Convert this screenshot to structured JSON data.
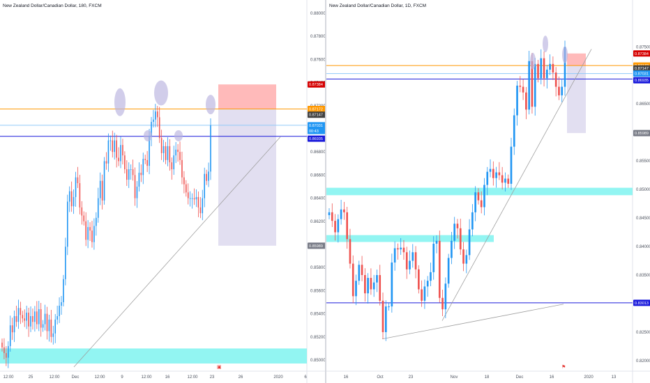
{
  "colors": {
    "up": "#2196f3",
    "down": "#ef5350",
    "zone": "#7ff3f0",
    "entry": "#ff9800",
    "tp_box": "#d8d4ec",
    "sl_box": "#ffb3b3",
    "line_dark": "#1a1adb",
    "line_light": "#90caf9",
    "trend": "#9e9e9e",
    "circle": "#b8b2de"
  },
  "icons": [
    "calendar-event-icon",
    "flag-icon"
  ],
  "left": {
    "title": "New Zealand Dollar/Canadian Dollar, 180, FXCM",
    "y_ticks": [
      "0.88000",
      "0.87800",
      "0.87600",
      "0.87400",
      "0.87200",
      "0.87000",
      "0.86800",
      "0.86600",
      "0.86400",
      "0.86200",
      "0.86000",
      "0.85800",
      "0.85600",
      "0.85400",
      "0.85200",
      "0.85000"
    ],
    "x_ticks": [
      "12:00",
      "25",
      "12:00",
      "Dec",
      "12:00",
      "9",
      "12:00",
      "16",
      "12:00",
      "23",
      "26",
      "2020",
      "6"
    ],
    "price_tags": [
      {
        "label": "0.87384",
        "color": "#d50000"
      },
      {
        "label": "0.87172",
        "color": "#ff9800"
      },
      {
        "label": "0.87147",
        "color": "#424242"
      },
      {
        "label": "0.87031",
        "color": "#2196f3"
      },
      {
        "label": "00:43",
        "color": "#2196f3"
      },
      {
        "label": "0.86935",
        "color": "#1a1adb"
      },
      {
        "label": "0.85989",
        "color": "#787b86"
      }
    ]
  },
  "right": {
    "title": "New Zealand Dollar/Canadian Dollar, 1D, FXCM",
    "y_ticks": [
      "0.87500",
      "0.87000",
      "0.86500",
      "0.86000",
      "0.85500",
      "0.85000",
      "0.84500",
      "0.84000",
      "0.83500",
      "0.83000",
      "0.82500",
      "0.82000"
    ],
    "x_ticks": [
      "16",
      "Oct",
      "23",
      "Nov",
      "18",
      "Dec",
      "16",
      "2020",
      "13"
    ],
    "price_tags": [
      {
        "label": "0.87384",
        "color": "#d50000"
      },
      {
        "label": "0.87172",
        "color": "#ff9800"
      },
      {
        "label": "0.87147",
        "color": "#424242"
      },
      {
        "label": "0.87031",
        "color": "#2196f3"
      },
      {
        "label": "0.86935",
        "color": "#1a1adb"
      },
      {
        "label": "0.85989",
        "color": "#787b86"
      },
      {
        "label": "0.83013",
        "color": "#1a1adb"
      }
    ]
  },
  "chart_data": [
    {
      "type": "candlestick",
      "title": "New Zealand Dollar/Canadian Dollar, 180, FXCM",
      "ylim": [
        0.8497,
        0.8803
      ],
      "yscale": "linear",
      "grid": false,
      "closes": [
        0.8511,
        0.8506,
        0.8502,
        0.8512,
        0.853,
        0.8524,
        0.8538,
        0.8533,
        0.8545,
        0.8539,
        0.8536,
        0.8534,
        0.8541,
        0.8529,
        0.8538,
        0.8533,
        0.8542,
        0.8531,
        0.8544,
        0.8528,
        0.8531,
        0.854,
        0.8525,
        0.8535,
        0.852,
        0.8523,
        0.8535,
        0.8538,
        0.8547,
        0.855,
        0.857,
        0.8598,
        0.8637,
        0.8646,
        0.8633,
        0.8641,
        0.8658,
        0.8653,
        0.8632,
        0.8625,
        0.862,
        0.8604,
        0.8615,
        0.8612,
        0.8602,
        0.8616,
        0.8623,
        0.864,
        0.8655,
        0.8638,
        0.8672,
        0.867,
        0.869,
        0.869,
        0.868,
        0.869,
        0.8675,
        0.8672,
        0.8686,
        0.8677,
        0.8665,
        0.8656,
        0.8665,
        0.8665,
        0.866,
        0.864,
        0.865,
        0.8662,
        0.866,
        0.8674,
        0.8673,
        0.8668,
        0.8694,
        0.8706,
        0.8708,
        0.8715,
        0.871,
        0.8692,
        0.8679,
        0.8685,
        0.8673,
        0.8685,
        0.8671,
        0.8665,
        0.8677,
        0.8682,
        0.868,
        0.8673,
        0.8658,
        0.8652,
        0.8645,
        0.864,
        0.864,
        0.864,
        0.8639,
        0.8641,
        0.8632,
        0.8627,
        0.864,
        0.8661,
        0.8655,
        0.8663,
        0.8703
      ],
      "zone": [
        0.8497,
        0.851
      ],
      "entry_level": 0.87172,
      "stop_level": 0.87384,
      "target_level": 0.85989,
      "horizontal_lines": [
        0.86935,
        0.87031
      ]
    },
    {
      "type": "candlestick",
      "title": "New Zealand Dollar/Canadian Dollar, 1D, FXCM",
      "ylim": [
        0.8195,
        0.8815
      ],
      "yscale": "linear",
      "grid": false,
      "closes": [
        0.846,
        0.8445,
        0.8425,
        0.8448,
        0.8465,
        0.846,
        0.8413,
        0.837,
        0.8313,
        0.834,
        0.8368,
        0.835,
        0.8318,
        0.8345,
        0.8325,
        0.8337,
        0.835,
        0.8305,
        0.825,
        0.8295,
        0.8295,
        0.8372,
        0.8397,
        0.8395,
        0.8398,
        0.839,
        0.836,
        0.8375,
        0.839,
        0.836,
        0.8325,
        0.8305,
        0.833,
        0.834,
        0.8355,
        0.8405,
        0.841,
        0.831,
        0.829,
        0.8335,
        0.838,
        0.841,
        0.844,
        0.8432,
        0.8395,
        0.837,
        0.8385,
        0.843,
        0.846,
        0.8495,
        0.8481,
        0.8469,
        0.8508,
        0.8531,
        0.8536,
        0.852,
        0.853,
        0.8525,
        0.8512,
        0.8519,
        0.851,
        0.8575,
        0.863,
        0.8682,
        0.868,
        0.867,
        0.864,
        0.8725,
        0.8645,
        0.872,
        0.8695,
        0.873,
        0.8695,
        0.871,
        0.872,
        0.8705,
        0.868,
        0.8665,
        0.868,
        0.875
      ],
      "zone_upper": [
        0.849,
        0.8503
      ],
      "zone_lower": [
        0.8408,
        0.842
      ],
      "entry_level": 0.87172,
      "stop_level": 0.87384,
      "target_level": 0.85989,
      "horizontal_lines": [
        0.86935,
        0.87031,
        0.83013
      ]
    }
  ]
}
